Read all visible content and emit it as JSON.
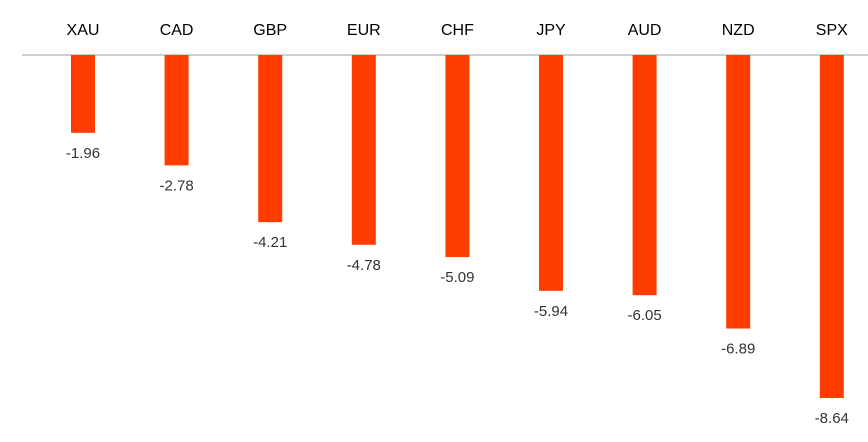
{
  "chart_data": {
    "type": "bar",
    "categories": [
      "XAU",
      "CAD",
      "GBP",
      "EUR",
      "CHF",
      "JPY",
      "AUD",
      "NZD",
      "SPX"
    ],
    "values": [
      -1.96,
      -2.78,
      -4.21,
      -4.78,
      -5.09,
      -5.94,
      -6.05,
      -6.89,
      -8.64
    ],
    "value_labels": [
      "-1.96",
      "-2.78",
      "-4.21",
      "-4.78",
      "-5.09",
      "-5.94",
      "-6.05",
      "-6.89",
      "-8.64"
    ],
    "title": "",
    "xlabel": "",
    "ylabel": "",
    "ylim": [
      -10,
      0
    ],
    "grid": false,
    "legend": "none",
    "category_axis_position": "top",
    "colors": {
      "bar": "#ff3d00",
      "axis": "#bfbfbf",
      "text": "#000000",
      "value_text": "#333333"
    }
  }
}
